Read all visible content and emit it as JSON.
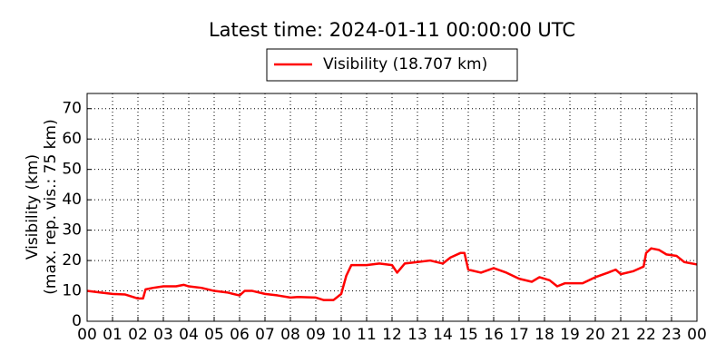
{
  "chart_data": {
    "type": "line",
    "title": "Latest time: 2024-01-11 00:00:00 UTC",
    "ylabel": [
      "Visibility (km)",
      "(max. rep. vis.: 75 km)"
    ],
    "x": [
      0,
      0.5,
      1,
      1.5,
      2,
      2.2,
      2.3,
      2.6,
      3,
      3.5,
      3.8,
      4,
      4.5,
      5,
      5.5,
      6,
      6.2,
      6.5,
      7,
      7.5,
      8,
      8.3,
      9,
      9.3,
      9.7,
      10,
      10.2,
      10.4,
      11,
      11.5,
      12,
      12.2,
      12.5,
      13,
      13.5,
      14,
      14.3,
      14.7,
      14.85,
      15,
      15.5,
      16,
      16.5,
      17,
      17.5,
      17.8,
      18.2,
      18.5,
      18.8,
      19.5,
      20,
      20.5,
      20.8,
      21,
      21.5,
      21.9,
      22,
      22.2,
      22.5,
      22.8,
      23.2,
      23.5,
      24
    ],
    "series": [
      {
        "name": "Visibility (18.707 km)",
        "color": "#ff0000",
        "values": [
          10,
          9.5,
          9,
          8.8,
          7.5,
          7.5,
          10.5,
          11,
          11.5,
          11.5,
          12,
          11.5,
          11,
          10,
          9.5,
          8.5,
          10,
          10,
          9,
          8.5,
          7.8,
          8,
          7.8,
          7,
          7,
          9,
          15,
          18.5,
          18.5,
          19,
          18.5,
          16,
          19,
          19.5,
          20,
          19,
          21,
          22.5,
          22.5,
          17,
          16,
          17.5,
          16,
          14,
          13,
          14.5,
          13.5,
          11.5,
          12.5,
          12.5,
          14.5,
          16,
          17,
          15.5,
          16.5,
          18,
          22.5,
          24,
          23.5,
          22,
          21.5,
          19.5,
          18.7
        ]
      }
    ],
    "xlim": [
      0,
      24
    ],
    "xticks": [
      {
        "value": 0,
        "label": "00"
      },
      {
        "value": 1,
        "label": "01"
      },
      {
        "value": 2,
        "label": "02"
      },
      {
        "value": 3,
        "label": "03"
      },
      {
        "value": 4,
        "label": "04"
      },
      {
        "value": 5,
        "label": "05"
      },
      {
        "value": 6,
        "label": "06"
      },
      {
        "value": 7,
        "label": "07"
      },
      {
        "value": 8,
        "label": "08"
      },
      {
        "value": 9,
        "label": "09"
      },
      {
        "value": 10,
        "label": "10"
      },
      {
        "value": 11,
        "label": "11"
      },
      {
        "value": 12,
        "label": "12"
      },
      {
        "value": 13,
        "label": "13"
      },
      {
        "value": 14,
        "label": "14"
      },
      {
        "value": 15,
        "label": "15"
      },
      {
        "value": 16,
        "label": "16"
      },
      {
        "value": 17,
        "label": "17"
      },
      {
        "value": 18,
        "label": "18"
      },
      {
        "value": 19,
        "label": "19"
      },
      {
        "value": 20,
        "label": "20"
      },
      {
        "value": 21,
        "label": "21"
      },
      {
        "value": 22,
        "label": "22"
      },
      {
        "value": 23,
        "label": "23"
      },
      {
        "value": 24,
        "label": "00"
      }
    ],
    "ylim": [
      0,
      75
    ],
    "yticks": [
      0,
      10,
      20,
      30,
      40,
      50,
      60,
      70
    ],
    "grid": true
  }
}
